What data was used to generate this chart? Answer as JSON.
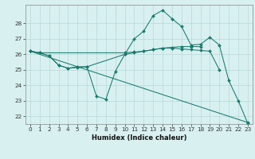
{
  "x": [
    0,
    1,
    2,
    3,
    4,
    5,
    6,
    7,
    8,
    9,
    10,
    11,
    12,
    13,
    14,
    15,
    16,
    17,
    18,
    19,
    20,
    21,
    22,
    23
  ],
  "series": [
    {
      "y": [
        26.2,
        26.1,
        null,
        null,
        null,
        null,
        null,
        null,
        null,
        null,
        26.1,
        26.15,
        26.2,
        26.3,
        26.4,
        26.45,
        26.5,
        26.5,
        26.5,
        null,
        null,
        null,
        null,
        null
      ],
      "markers": true
    },
    {
      "y": [
        26.2,
        26.1,
        25.9,
        25.3,
        25.1,
        25.15,
        25.2,
        null,
        null,
        null,
        26.0,
        26.1,
        26.2,
        26.3,
        26.4,
        26.4,
        26.35,
        26.3,
        26.25,
        26.2,
        25.0,
        null,
        null,
        null
      ],
      "markers": true
    },
    {
      "y": [
        26.2,
        null,
        null,
        null,
        null,
        null,
        null,
        null,
        null,
        null,
        null,
        null,
        null,
        null,
        null,
        null,
        null,
        null,
        null,
        null,
        null,
        null,
        null,
        21.6
      ],
      "markers": true
    },
    {
      "y": [
        26.2,
        26.1,
        25.9,
        25.3,
        25.1,
        25.2,
        25.2,
        23.3,
        23.1,
        24.9,
        26.0,
        27.0,
        27.5,
        28.5,
        28.85,
        28.3,
        27.8,
        26.6,
        26.65,
        27.1,
        26.6,
        24.3,
        23.0,
        21.55
      ],
      "markers": true
    }
  ],
  "color": "#1a7a6e",
  "bg_color": "#d8f0f0",
  "grid_color": "#b8d8d8",
  "xlabel": "Humidex (Indice chaleur)",
  "ylim": [
    21.5,
    29.2
  ],
  "xlim": [
    -0.5,
    23.5
  ],
  "yticks": [
    22,
    23,
    24,
    25,
    26,
    27,
    28
  ],
  "xticks": [
    0,
    1,
    2,
    3,
    4,
    5,
    6,
    7,
    8,
    9,
    10,
    11,
    12,
    13,
    14,
    15,
    16,
    17,
    18,
    19,
    20,
    21,
    22,
    23
  ],
  "xlabel_fontsize": 6.0,
  "tick_fontsize": 5.2,
  "linewidth": 0.75,
  "markersize": 2.0
}
